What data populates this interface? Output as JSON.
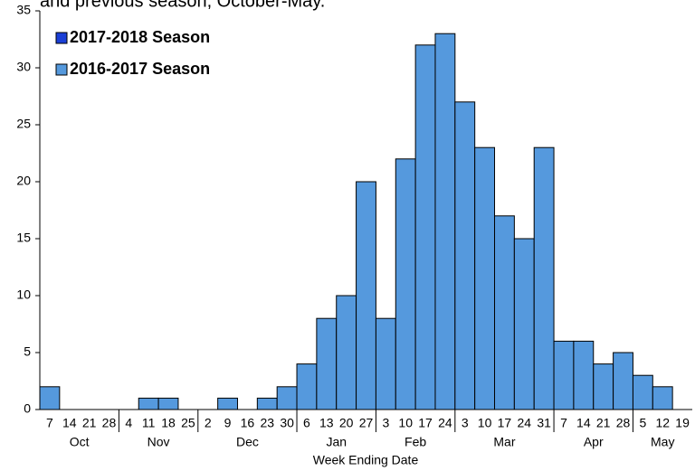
{
  "chart_data": {
    "type": "bar",
    "title": "and previous season, October-May.",
    "x_label": "Week Ending Date",
    "categories": [
      "7",
      "14",
      "21",
      "28",
      "4",
      "11",
      "18",
      "25",
      "2",
      "9",
      "16",
      "23",
      "30",
      "6",
      "13",
      "20",
      "27",
      "3",
      "10",
      "17",
      "24",
      "3",
      "10",
      "17",
      "24",
      "31",
      "7",
      "14",
      "21",
      "28",
      "5",
      "12",
      "19"
    ],
    "x_groups": [
      {
        "label": "Oct",
        "count": 4
      },
      {
        "label": "Nov",
        "count": 4
      },
      {
        "label": "Dec",
        "count": 5
      },
      {
        "label": "Jan",
        "count": 4
      },
      {
        "label": "Feb",
        "count": 4
      },
      {
        "label": "Mar",
        "count": 5
      },
      {
        "label": "Apr",
        "count": 4
      },
      {
        "label": "May",
        "count": 3
      }
    ],
    "series": [
      {
        "name": "2017-2018 Season",
        "color": "#1a3fd6",
        "values": [
          null,
          null,
          null,
          null,
          null,
          null,
          null,
          null,
          null,
          null,
          null,
          null,
          null,
          null,
          null,
          null,
          null,
          null,
          null,
          null,
          null,
          null,
          null,
          null,
          null,
          null,
          null,
          null,
          null,
          null,
          null,
          null,
          null
        ]
      },
      {
        "name": "2016-2017 Season",
        "color": "#5599dd",
        "values": [
          2,
          0,
          0,
          0,
          0,
          1,
          1,
          0,
          0,
          1,
          0,
          1,
          2,
          4,
          8,
          10,
          20,
          8,
          22,
          32,
          33,
          27,
          23,
          17,
          15,
          23,
          6,
          6,
          4,
          5,
          3,
          2,
          0
        ]
      }
    ],
    "ylim": [
      0,
      35
    ],
    "yticks": [
      0,
      5,
      10,
      15,
      20,
      25,
      30,
      35
    ]
  }
}
